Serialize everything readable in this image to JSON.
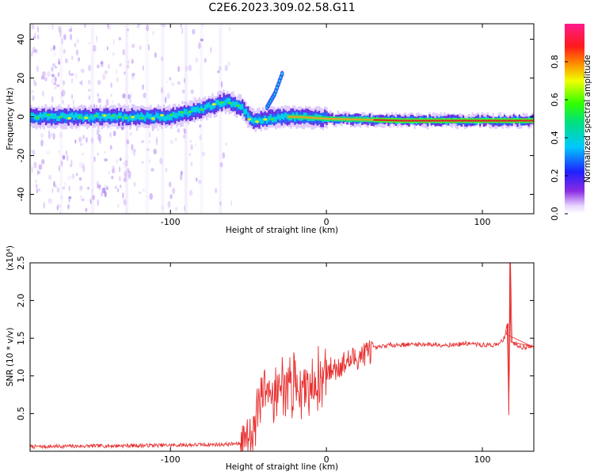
{
  "title": "C2E6.2023.309.02.58.G11",
  "colors": {
    "frame": "#000000",
    "snr_line": "#e83030",
    "spectrogram_low": "#ffffff",
    "spectrogram_high": "#e6194b"
  },
  "chart_data": [
    {
      "type": "heatmap",
      "xlabel": "Height of straight line (km)",
      "ylabel": "Frequency (Hz)",
      "xlim": [
        -190,
        133
      ],
      "ylim": [
        -50,
        48
      ],
      "x_ticks": [
        -100,
        0,
        100
      ],
      "y_ticks": [
        -40,
        -20,
        0,
        20,
        40
      ],
      "x_tick_labels": [
        "-100",
        "0",
        "100"
      ],
      "y_tick_labels": [
        "-40",
        "-20",
        "0",
        "20",
        "40"
      ],
      "colorbar": {
        "label": "Normalized spectral amplitude",
        "range": [
          0.0,
          1.0
        ],
        "tick_values": [
          0.0,
          0.2,
          0.4,
          0.6,
          0.8
        ],
        "tick_labels": [
          "0.0",
          "0.2",
          "0.4",
          "0.6",
          "0.8"
        ],
        "colormap": "rainbow (white→purple→blue→cyan→green→yellow→red→magenta)"
      },
      "ridge": [
        {
          "x": -190,
          "y": 0
        },
        {
          "x": -150,
          "y": 0
        },
        {
          "x": -100,
          "y": 0
        },
        {
          "x": -80,
          "y": 4
        },
        {
          "x": -65,
          "y": 8
        },
        {
          "x": -55,
          "y": 5
        },
        {
          "x": -48,
          "y": -2
        },
        {
          "x": -30,
          "y": 0
        },
        {
          "x": -20,
          "y": 0
        },
        {
          "x": 0,
          "y": -1
        },
        {
          "x": 50,
          "y": -2
        },
        {
          "x": 100,
          "y": -2
        },
        {
          "x": 133,
          "y": -2
        }
      ],
      "branch": [
        {
          "x": -38,
          "y": 5
        },
        {
          "x": -33,
          "y": 12
        },
        {
          "x": -28,
          "y": 23
        }
      ]
    },
    {
      "type": "line",
      "xlabel": "Height of straight line (km)",
      "ylabel": "SNR (10 * v/v)",
      "y_multiplier": "(x10⁴)",
      "xlim": [
        -190,
        133
      ],
      "ylim": [
        0,
        25000
      ],
      "x_ticks": [
        -100,
        0,
        100
      ],
      "y_ticks": [
        5000,
        10000,
        15000,
        20000,
        25000
      ],
      "x_tick_labels": [
        "-100",
        "0",
        "100"
      ],
      "y_tick_labels": [
        "0.5",
        "1.0",
        "1.5",
        "2.0",
        "2.5"
      ],
      "series": [
        {
          "points": [
            [
              -190,
              500
            ],
            [
              -150,
              600
            ],
            [
              -100,
              700
            ],
            [
              -70,
              800
            ],
            [
              -55,
              900
            ],
            [
              -48,
              3000
            ],
            [
              -42,
              6000
            ],
            [
              -35,
              8000
            ],
            [
              -25,
              9000
            ],
            [
              -18,
              8500
            ],
            [
              -10,
              9000
            ],
            [
              -5,
              9500
            ],
            [
              0,
              10500
            ],
            [
              10,
              11500
            ],
            [
              20,
              12500
            ],
            [
              30,
              13600
            ],
            [
              40,
              14100
            ],
            [
              60,
              14200
            ],
            [
              80,
              14100
            ],
            [
              90,
              14300
            ],
            [
              100,
              14100
            ],
            [
              110,
              14100
            ],
            [
              114,
              15000
            ],
            [
              116,
              17000
            ],
            [
              117,
              4800
            ],
            [
              118,
              25000
            ],
            [
              119,
              14500
            ],
            [
              125,
              13800
            ],
            [
              133,
              13900
            ]
          ]
        }
      ]
    }
  ]
}
